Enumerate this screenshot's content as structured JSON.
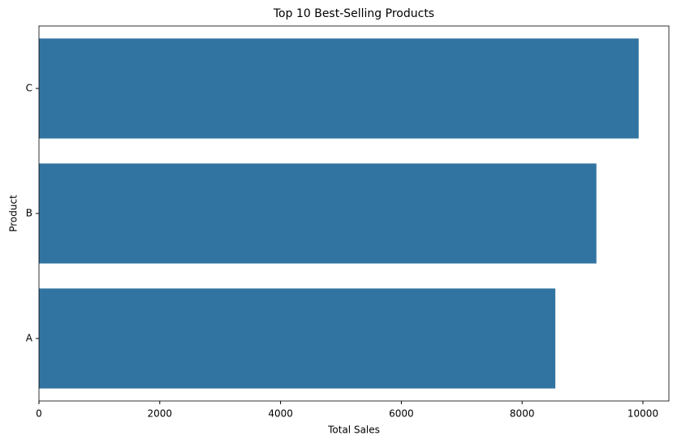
{
  "chart_data": {
    "type": "barh",
    "title": "Top 10 Best-Selling Products",
    "x_label": "Total Sales",
    "y_label": "Product",
    "categories": [
      "C",
      "B",
      "A"
    ],
    "values": [
      9930,
      9230,
      8550
    ],
    "color": "#3274a1",
    "xlim": [
      0,
      10430
    ],
    "xticks": [
      0,
      2000,
      4000,
      6000,
      8000,
      10000
    ]
  }
}
